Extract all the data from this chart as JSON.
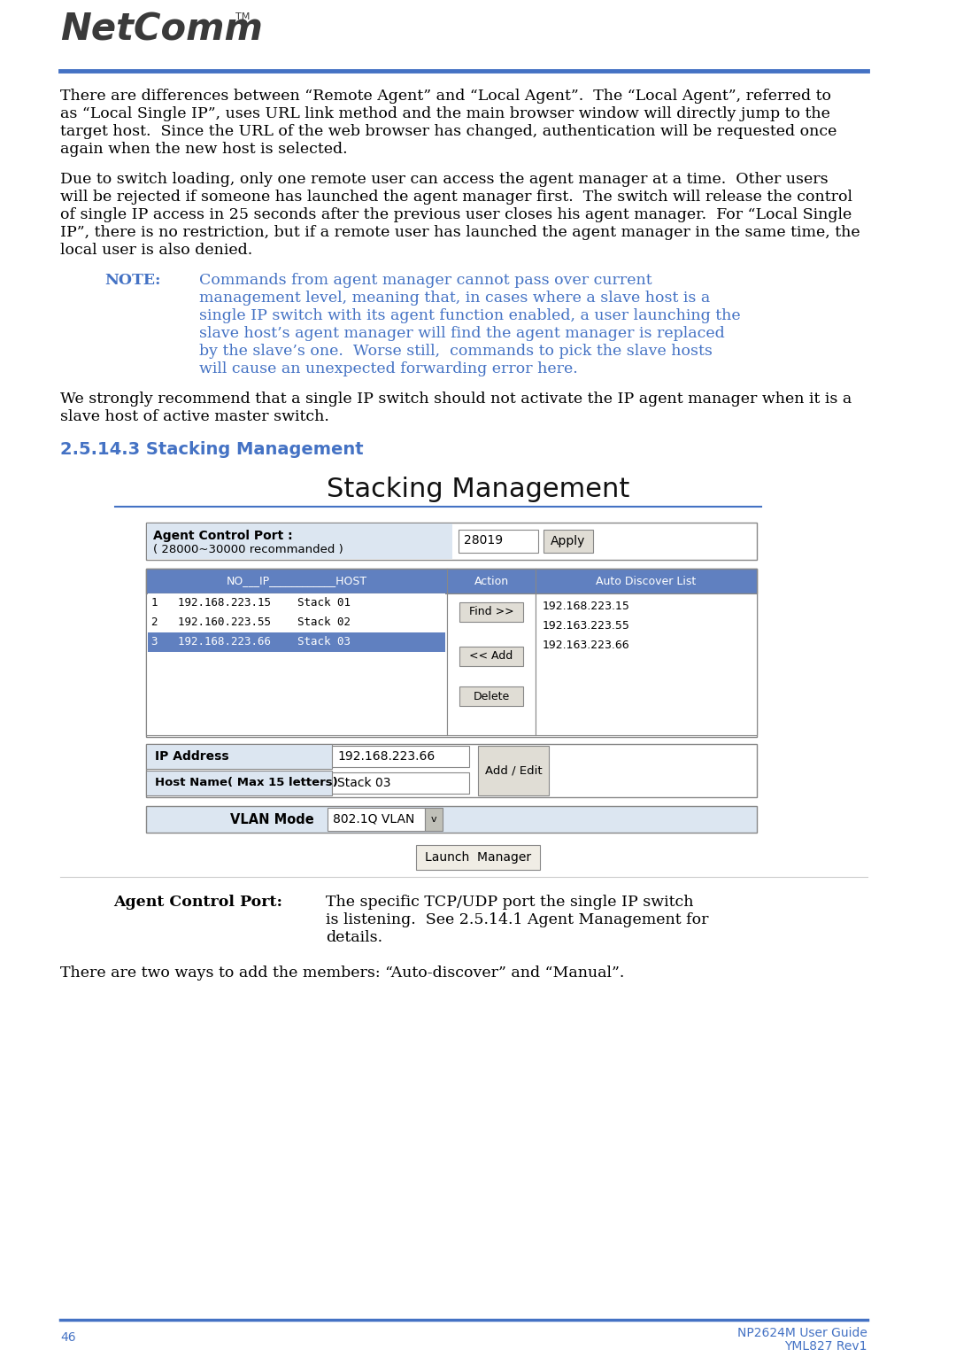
{
  "page_bg": "#ffffff",
  "header_line_color": "#4472C4",
  "footer_line_color": "#4472C4",
  "logo_color": "#3a3a3a",
  "footer_color": "#4472C4",
  "body_color": "#000000",
  "note_color": "#4472C4",
  "section_heading_color": "#4472C4",
  "table_header_bg": "#6080c0",
  "table_row3_bg": "#6080c0",
  "table_row3_color": "#ffffff",
  "agent_ctrl_box_bg": "#dce6f1",
  "label_bg": "#dce6f1",
  "vlan_label_bg": "#dce6f1",
  "btn_bg": "#e8e8e0",
  "input_bg": "#ffffff",
  "border_color": "#888888",
  "page_number": "46",
  "footer_right_line1": "NP2624M User Guide",
  "footer_right_line2": "YML827 Rev1",
  "para1_lines": [
    "There are differences between “Remote Agent” and “Local Agent”.  The “Local Agent”, referred to",
    "as “Local Single IP”, uses URL link method and the main browser window will directly jump to the",
    "target host.  Since the URL of the web browser has changed, authentication will be requested once",
    "again when the new host is selected."
  ],
  "para2_lines": [
    "Due to switch loading, only one remote user can access the agent manager at a time.  Other users",
    "will be rejected if someone has launched the agent manager first.  The switch will release the control",
    "of single IP access in 25 seconds after the previous user closes his agent manager.  For “Local Single",
    "IP”, there is no restriction, but if a remote user has launched the agent manager in the same time, the",
    "local user is also denied."
  ],
  "note_label": "NOTE:",
  "note_lines": [
    "Commands from agent manager cannot pass over current",
    "management level, meaning that, in cases where a slave host is a",
    "single IP switch with its agent function enabled, a user launching the",
    "slave host’s agent manager will find the agent manager is replaced",
    "by the slave’s one.  Worse still,  commands to pick the slave hosts",
    "will cause an unexpected forwarding error here."
  ],
  "para3_lines": [
    "We strongly recommend that a single IP switch should not activate the IP agent manager when it is a",
    "slave host of active master switch."
  ],
  "section_heading": "2.5.14.3 Stacking Management",
  "stacking_title": "Stacking Management",
  "discover_items": [
    "192.168.223.15",
    "192.163.223.55",
    "192.163.223.66"
  ],
  "row_data": [
    [
      "1",
      "192.168.223.15",
      "Stack 01"
    ],
    [
      "2",
      "192.160.223.55",
      "Stack 02"
    ],
    [
      "3",
      "192.168.223.66",
      "Stack 03"
    ]
  ],
  "ip_value": "192.168.223.66",
  "hostname_value": "Stack 03",
  "vlan_value": "802.1Q VLAN",
  "agent_port_desc_lines": [
    "The specific TCP/UDP port the single IP switch",
    "is listening.  See 2.5.14.1 Agent Management for",
    "details."
  ],
  "para4": "There are two ways to add the members: “Auto-discover” and “Manual”."
}
